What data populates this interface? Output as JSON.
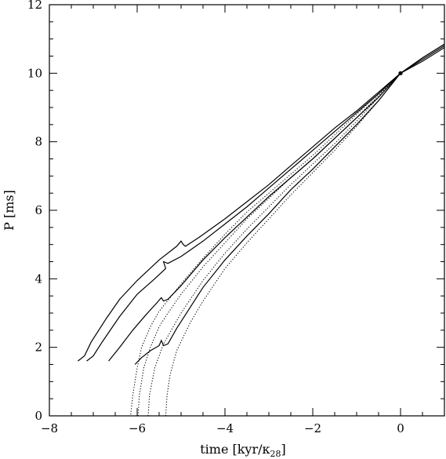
{
  "chart_data": {
    "type": "line",
    "title": "",
    "xlabel": "time [kyr/κ",
    "xlabel_sub": "28",
    "xlabel_suffix": "]",
    "ylabel": "P [ms]",
    "xlim": [
      -8,
      1
    ],
    "ylim": [
      0,
      12
    ],
    "x_ticks": [
      -8,
      -6,
      -4,
      -2,
      0
    ],
    "x_tick_labels": [
      "−8",
      "−6",
      "−4",
      "−2",
      "0"
    ],
    "y_ticks": [
      0,
      2,
      4,
      6,
      8,
      10,
      12
    ],
    "y_tick_labels": [
      "0",
      "2",
      "4",
      "6",
      "8",
      "10",
      "12"
    ],
    "grid": false,
    "marker_point": {
      "x": 0,
      "y": 10
    },
    "series": [
      {
        "style": "solid",
        "points": [
          [
            -7.35,
            1.6
          ],
          [
            -7.2,
            1.75
          ],
          [
            -7.05,
            2.15
          ],
          [
            -6.7,
            2.85
          ],
          [
            -6.4,
            3.4
          ],
          [
            -6.0,
            3.95
          ],
          [
            -5.5,
            4.55
          ],
          [
            -5.1,
            4.95
          ],
          [
            -5.0,
            5.1
          ],
          [
            -4.95,
            5.0
          ],
          [
            -4.9,
            4.95
          ],
          [
            -4.6,
            5.2
          ],
          [
            -4.0,
            5.75
          ],
          [
            -3.5,
            6.25
          ],
          [
            -3.0,
            6.75
          ],
          [
            -2.5,
            7.3
          ],
          [
            -2.0,
            7.85
          ],
          [
            -1.5,
            8.4
          ],
          [
            -1.0,
            8.9
          ],
          [
            -0.5,
            9.45
          ],
          [
            0,
            10.0
          ],
          [
            0.5,
            10.45
          ],
          [
            1.0,
            10.85
          ]
        ]
      },
      {
        "style": "solid",
        "points": [
          [
            -7.15,
            1.6
          ],
          [
            -7.0,
            1.75
          ],
          [
            -6.8,
            2.15
          ],
          [
            -6.4,
            2.9
          ],
          [
            -6.0,
            3.55
          ],
          [
            -5.6,
            4.0
          ],
          [
            -5.35,
            4.3
          ],
          [
            -5.4,
            4.5
          ],
          [
            -5.3,
            4.45
          ],
          [
            -5.0,
            4.65
          ],
          [
            -4.5,
            5.1
          ],
          [
            -4.0,
            5.6
          ],
          [
            -3.5,
            6.1
          ],
          [
            -3.0,
            6.65
          ],
          [
            -2.5,
            7.2
          ],
          [
            -2.0,
            7.75
          ],
          [
            -1.5,
            8.3
          ],
          [
            -1.0,
            8.85
          ],
          [
            -0.5,
            9.4
          ],
          [
            0,
            10.0
          ],
          [
            0.5,
            10.45
          ],
          [
            1.0,
            10.85
          ]
        ]
      },
      {
        "style": "solid",
        "points": [
          [
            -6.65,
            1.6
          ],
          [
            -6.4,
            2.0
          ],
          [
            -6.1,
            2.5
          ],
          [
            -5.8,
            2.95
          ],
          [
            -5.55,
            3.3
          ],
          [
            -5.45,
            3.45
          ],
          [
            -5.4,
            3.35
          ],
          [
            -5.3,
            3.4
          ],
          [
            -5.0,
            3.8
          ],
          [
            -4.5,
            4.55
          ],
          [
            -4.0,
            5.2
          ],
          [
            -3.5,
            5.8
          ],
          [
            -3.0,
            6.4
          ],
          [
            -2.5,
            6.95
          ],
          [
            -2.0,
            7.5
          ],
          [
            -1.5,
            8.1
          ],
          [
            -1.0,
            8.7
          ],
          [
            -0.5,
            9.3
          ],
          [
            0,
            10.0
          ],
          [
            0.5,
            10.4
          ],
          [
            1.0,
            10.8
          ]
        ]
      },
      {
        "style": "solid",
        "points": [
          [
            -6.05,
            1.5
          ],
          [
            -5.9,
            1.7
          ],
          [
            -5.7,
            1.9
          ],
          [
            -5.5,
            2.05
          ],
          [
            -5.45,
            2.2
          ],
          [
            -5.4,
            2.05
          ],
          [
            -5.3,
            2.1
          ],
          [
            -5.1,
            2.55
          ],
          [
            -4.8,
            3.15
          ],
          [
            -4.5,
            3.75
          ],
          [
            -4.0,
            4.55
          ],
          [
            -3.5,
            5.25
          ],
          [
            -3.0,
            5.9
          ],
          [
            -2.5,
            6.6
          ],
          [
            -2.0,
            7.2
          ],
          [
            -1.5,
            7.85
          ],
          [
            -1.0,
            8.5
          ],
          [
            -0.5,
            9.2
          ],
          [
            0,
            10.0
          ],
          [
            0.5,
            10.35
          ],
          [
            1.0,
            10.75
          ]
        ]
      },
      {
        "style": "dotted",
        "points": [
          [
            -8.0,
            0
          ],
          [
            -6.15,
            0
          ],
          [
            -6.1,
            0.6
          ],
          [
            -6.0,
            1.4
          ],
          [
            -5.9,
            2.0
          ],
          [
            -5.7,
            2.6
          ],
          [
            -5.5,
            3.05
          ],
          [
            -5.0,
            3.85
          ],
          [
            -4.5,
            4.6
          ],
          [
            -4.0,
            5.3
          ],
          [
            -3.5,
            5.95
          ],
          [
            -3.0,
            6.5
          ],
          [
            -2.5,
            7.05
          ],
          [
            -2.0,
            7.6
          ],
          [
            -1.5,
            8.2
          ],
          [
            -1.0,
            8.8
          ],
          [
            -0.5,
            9.4
          ],
          [
            0,
            10.0
          ]
        ]
      },
      {
        "style": "dotted",
        "points": [
          [
            -5.98,
            0
          ],
          [
            -5.95,
            0.6
          ],
          [
            -5.85,
            1.4
          ],
          [
            -5.7,
            2.0
          ],
          [
            -5.5,
            2.6
          ],
          [
            -5.3,
            3.0
          ],
          [
            -5.0,
            3.55
          ],
          [
            -4.5,
            4.35
          ],
          [
            -4.0,
            5.05
          ],
          [
            -3.5,
            5.75
          ],
          [
            -3.0,
            6.35
          ],
          [
            -2.5,
            6.95
          ],
          [
            -2.0,
            7.5
          ],
          [
            -1.5,
            8.1
          ],
          [
            -1.0,
            8.7
          ],
          [
            -0.5,
            9.35
          ],
          [
            0,
            10.0
          ]
        ]
      },
      {
        "style": "dotted",
        "points": [
          [
            -5.75,
            0
          ],
          [
            -5.72,
            0.6
          ],
          [
            -5.6,
            1.4
          ],
          [
            -5.4,
            2.1
          ],
          [
            -5.0,
            3.0
          ],
          [
            -4.5,
            3.95
          ],
          [
            -4.0,
            4.75
          ],
          [
            -3.5,
            5.45
          ],
          [
            -3.0,
            6.1
          ],
          [
            -2.5,
            6.75
          ],
          [
            -2.0,
            7.35
          ],
          [
            -1.5,
            7.95
          ],
          [
            -1.0,
            8.6
          ],
          [
            -0.5,
            9.3
          ],
          [
            0,
            10.0
          ]
        ]
      },
      {
        "style": "dotted",
        "points": [
          [
            -5.35,
            0
          ],
          [
            -5.32,
            0.6
          ],
          [
            -5.25,
            1.2
          ],
          [
            -5.1,
            1.9
          ],
          [
            -4.8,
            2.7
          ],
          [
            -4.5,
            3.35
          ],
          [
            -4.0,
            4.3
          ],
          [
            -3.5,
            5.05
          ],
          [
            -3.0,
            5.75
          ],
          [
            -2.5,
            6.45
          ],
          [
            -2.0,
            7.1
          ],
          [
            -1.5,
            7.75
          ],
          [
            -1.0,
            8.45
          ],
          [
            -0.5,
            9.2
          ],
          [
            0,
            10.0
          ]
        ]
      }
    ]
  }
}
